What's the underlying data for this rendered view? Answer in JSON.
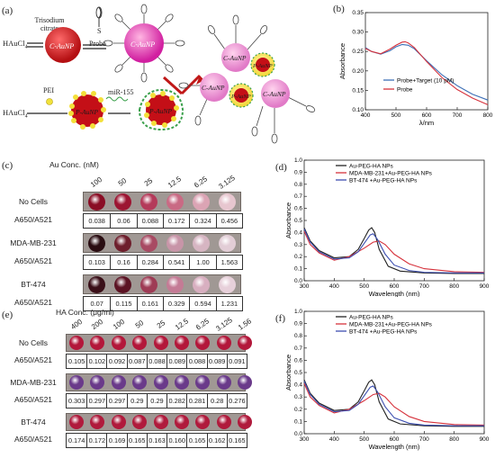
{
  "panel_a": {
    "label": "(a)",
    "haucl4_top": "HAuCl",
    "haucl4_sub": "4",
    "trisodium_citrate": "Trisodium\ncitrate",
    "probe": "Probe",
    "s_label": "S",
    "caunp": "C-AuNP",
    "haucl4_bottom": "HAuCl",
    "pei": "PEI",
    "mir155": "miR-155",
    "paunp": "P-AuNP"
  },
  "panel_b": {
    "label": "(b)",
    "ylabel": "Absorbance",
    "xlabel": "λ/nm",
    "legend": [
      "Probe+Target (10 pM)",
      "Probe"
    ],
    "colors": [
      "#3d6fb6",
      "#d6323c"
    ]
  },
  "panel_c": {
    "label": "(c)",
    "conc_label": "Au Conc. (nM)",
    "concs": [
      "100",
      "50",
      "25",
      "12.5",
      "6.25",
      "3.125"
    ],
    "rows": [
      {
        "name": "No Cells",
        "ratio_label": "A650/A521",
        "values": [
          "0.038",
          "0.06",
          "0.088",
          "0.172",
          "0.324",
          "0.456"
        ]
      },
      {
        "name": "MDA-MB-231",
        "ratio_label": "A650/A521",
        "values": [
          "0.103",
          "0.16",
          "0.284",
          "0.541",
          "1.00",
          "1.563"
        ]
      },
      {
        "name": "BT-474",
        "ratio_label": "A650/A521",
        "values": [
          "0.07",
          "0.115",
          "0.161",
          "0.329",
          "0.594",
          "1.231"
        ]
      }
    ]
  },
  "panel_d": {
    "label": "(d)",
    "ylabel": "Absorbance",
    "xlabel": "Wavelength (nm)",
    "legend": [
      "Au-PEG-HA NPs",
      "MDA-MB-231+Au-PEG-HA NPs",
      "BT-474 +Au-PEG-HA NPs"
    ],
    "colors": [
      "#222222",
      "#d6323c",
      "#3d4fb0"
    ]
  },
  "panel_e": {
    "label": "(e)",
    "conc_label": "HA Conc. (μg/ml)",
    "concs": [
      "400",
      "200",
      "100",
      "50",
      "25",
      "12.5",
      "6.25",
      "3.125",
      "1.56"
    ],
    "rows": [
      {
        "name": "No Cells",
        "ratio_label": "A650/A521",
        "values": [
          "0.105",
          "0.102",
          "0.092",
          "0.087",
          "0.088",
          "0.089",
          "0.088",
          "0.089",
          "0.091"
        ]
      },
      {
        "name": "MDA-MB-231",
        "ratio_label": "A650/A521",
        "values": [
          "0.303",
          "0.297",
          "0.297",
          "0.29",
          "0.29",
          "0.282",
          "0.281",
          "0.28",
          "0.276"
        ]
      },
      {
        "name": "BT-474",
        "ratio_label": "A650/A521",
        "values": [
          "0.174",
          "0.172",
          "0.169",
          "0.165",
          "0.163",
          "0.160",
          "0.165",
          "0.162",
          "0.165"
        ]
      }
    ]
  },
  "panel_f": {
    "label": "(f)",
    "ylabel": "Absorbance",
    "xlabel": "Wavelength (nm)",
    "legend": [
      "Au-PEG-HA NPs",
      "MDA-MB-231+Au-PEG-HA NPs",
      "BT-474 +Au-PEG-HA NPs"
    ],
    "colors": [
      "#222222",
      "#d6323c",
      "#3d4fb0"
    ]
  },
  "chart_data": [
    {
      "type": "line",
      "panel": "b",
      "xlabel": "λ/nm",
      "ylabel": "Absorbance",
      "xlim": [
        400,
        800
      ],
      "ylim": [
        0.1,
        0.35
      ],
      "xticks": [
        400,
        500,
        600,
        700,
        800
      ],
      "yticks": [
        0.1,
        0.15,
        0.2,
        0.25,
        0.3,
        0.35
      ],
      "series": [
        {
          "name": "Probe+Target (10 pM)",
          "x": [
            400,
            420,
            450,
            480,
            500,
            520,
            540,
            560,
            600,
            650,
            700,
            750,
            800
          ],
          "y": [
            0.26,
            0.25,
            0.243,
            0.252,
            0.262,
            0.268,
            0.266,
            0.257,
            0.226,
            0.19,
            0.162,
            0.14,
            0.125
          ]
        },
        {
          "name": "Probe",
          "x": [
            400,
            420,
            450,
            480,
            500,
            520,
            530,
            540,
            560,
            600,
            650,
            700,
            750,
            800
          ],
          "y": [
            0.258,
            0.25,
            0.244,
            0.256,
            0.266,
            0.274,
            0.275,
            0.272,
            0.26,
            0.224,
            0.183,
            0.152,
            0.13,
            0.113
          ]
        }
      ]
    },
    {
      "type": "line",
      "panel": "d",
      "xlabel": "Wavelength (nm)",
      "ylabel": "Absorbance",
      "xlim": [
        300,
        900
      ],
      "ylim": [
        0,
        1.0
      ],
      "xticks": [
        300,
        400,
        500,
        600,
        700,
        800,
        900
      ],
      "yticks": [
        0.0,
        0.1,
        0.2,
        0.3,
        0.4,
        0.5,
        0.6,
        0.7,
        0.8,
        0.9,
        1.0
      ],
      "series": [
        {
          "name": "Au-PEG-HA NPs",
          "x": [
            300,
            320,
            350,
            400,
            450,
            480,
            500,
            515,
            525,
            535,
            550,
            580,
            620,
            700,
            800,
            900
          ],
          "y": [
            0.44,
            0.33,
            0.25,
            0.19,
            0.2,
            0.26,
            0.35,
            0.42,
            0.44,
            0.4,
            0.26,
            0.12,
            0.08,
            0.065,
            0.06,
            0.06
          ]
        },
        {
          "name": "MDA-MB-231+Au-PEG-HA NPs",
          "x": [
            300,
            320,
            350,
            400,
            450,
            500,
            530,
            550,
            570,
            600,
            650,
            700,
            800,
            900
          ],
          "y": [
            0.41,
            0.3,
            0.23,
            0.17,
            0.2,
            0.27,
            0.32,
            0.33,
            0.3,
            0.22,
            0.14,
            0.1,
            0.075,
            0.07
          ]
        },
        {
          "name": "BT-474 +Au-PEG-HA NPs",
          "x": [
            300,
            320,
            350,
            400,
            450,
            480,
            500,
            520,
            530,
            545,
            570,
            600,
            650,
            700,
            800,
            900
          ],
          "y": [
            0.43,
            0.32,
            0.24,
            0.18,
            0.19,
            0.24,
            0.31,
            0.38,
            0.39,
            0.34,
            0.22,
            0.13,
            0.085,
            0.07,
            0.065,
            0.065
          ]
        }
      ]
    },
    {
      "type": "line",
      "panel": "f",
      "xlabel": "Wavelength (nm)",
      "ylabel": "Absorbance",
      "xlim": [
        300,
        900
      ],
      "ylim": [
        0,
        1.0
      ],
      "xticks": [
        300,
        400,
        500,
        600,
        700,
        800,
        900
      ],
      "yticks": [
        0.0,
        0.1,
        0.2,
        0.3,
        0.4,
        0.5,
        0.6,
        0.7,
        0.8,
        0.9,
        1.0
      ],
      "series": [
        {
          "name": "Au-PEG-HA NPs",
          "x": [
            300,
            320,
            350,
            400,
            450,
            480,
            500,
            515,
            525,
            535,
            550,
            580,
            620,
            700,
            800,
            900
          ],
          "y": [
            0.44,
            0.33,
            0.25,
            0.19,
            0.2,
            0.26,
            0.35,
            0.42,
            0.44,
            0.4,
            0.26,
            0.12,
            0.08,
            0.065,
            0.06,
            0.06
          ]
        },
        {
          "name": "MDA-MB-231+Au-PEG-HA NPs",
          "x": [
            300,
            320,
            350,
            400,
            450,
            500,
            530,
            550,
            570,
            600,
            650,
            700,
            800,
            900
          ],
          "y": [
            0.41,
            0.3,
            0.23,
            0.17,
            0.2,
            0.27,
            0.32,
            0.33,
            0.3,
            0.22,
            0.14,
            0.1,
            0.075,
            0.07
          ]
        },
        {
          "name": "BT-474 +Au-PEG-HA NPs",
          "x": [
            300,
            320,
            350,
            400,
            450,
            480,
            500,
            520,
            530,
            545,
            570,
            600,
            650,
            700,
            800,
            900
          ],
          "y": [
            0.43,
            0.32,
            0.24,
            0.18,
            0.19,
            0.24,
            0.31,
            0.38,
            0.39,
            0.34,
            0.22,
            0.13,
            0.085,
            0.07,
            0.065,
            0.065
          ]
        }
      ]
    }
  ]
}
